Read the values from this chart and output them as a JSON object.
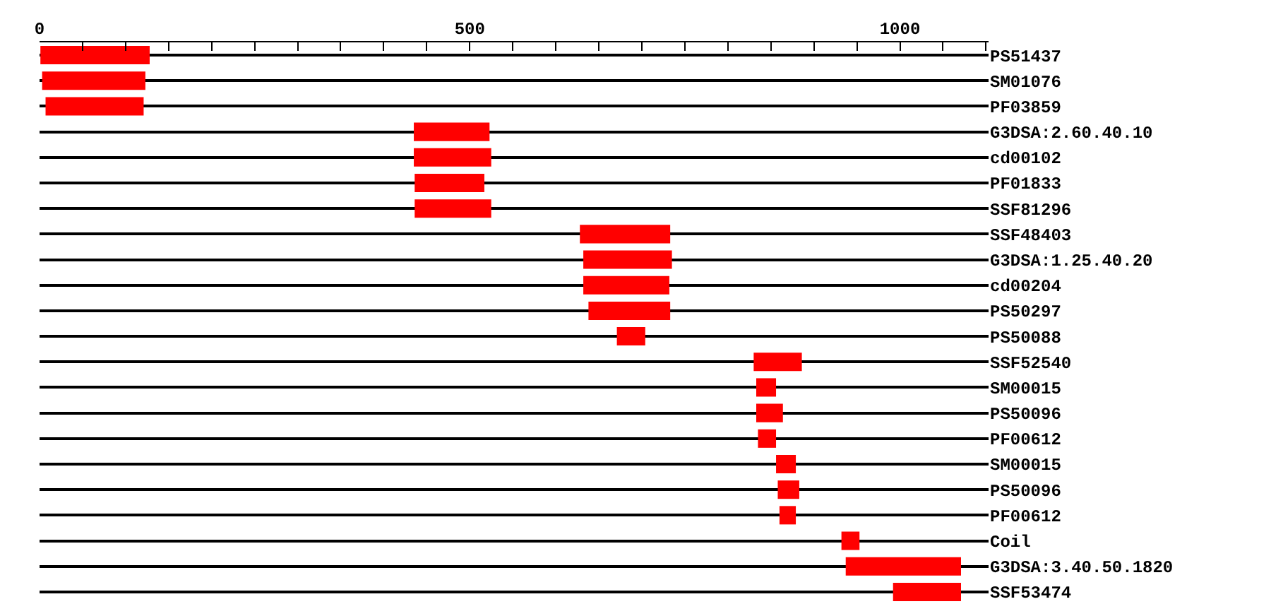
{
  "chart_data": {
    "type": "bar",
    "orientation": "horizontal",
    "categories": [
      "PS51437",
      "SM01076",
      "PF03859",
      "G3DSA:2.60.40.10",
      "cd00102",
      "PF01833",
      "SSF81296",
      "SSF48403",
      "G3DSA:1.25.40.20",
      "cd00204",
      "PS50297",
      "PS50088",
      "SSF52540",
      "SM00015",
      "PS50096",
      "PF00612",
      "SM00015",
      "PS50096",
      "PF00612",
      "Coil",
      "G3DSA:3.40.50.1820",
      "SSF53474"
    ],
    "base": [
      1,
      3,
      7,
      435,
      435,
      436,
      436,
      628,
      632,
      632,
      638,
      671,
      830,
      833,
      833,
      835,
      856,
      858,
      860,
      932,
      937,
      992
    ],
    "values": [
      127,
      120,
      114,
      88,
      90,
      81,
      89,
      105,
      103,
      100,
      95,
      33,
      56,
      23,
      31,
      21,
      23,
      25,
      19,
      21,
      134,
      79
    ],
    "color": "#ff0000",
    "xlim": [
      0,
      1103
    ],
    "xticks": [
      0,
      {
        "value": 50,
        "label": null
      },
      {
        "value": 100,
        "label": null
      },
      {
        "value": 150,
        "label": null
      },
      {
        "value": 200,
        "label": null
      },
      {
        "value": 250,
        "label": null
      },
      {
        "value": 300,
        "label": null
      },
      {
        "value": 350,
        "label": null
      },
      {
        "value": 400,
        "label": null
      },
      {
        "value": 450,
        "label": null
      },
      500,
      {
        "value": 550,
        "label": null
      },
      {
        "value": 600,
        "label": null
      },
      {
        "value": 650,
        "label": null
      },
      {
        "value": 700,
        "label": null
      },
      {
        "value": 750,
        "label": null
      },
      {
        "value": 800,
        "label": null
      },
      {
        "value": 850,
        "label": null
      },
      {
        "value": 900,
        "label": null
      },
      {
        "value": 950,
        "label": null
      },
      1000,
      {
        "value": 1050,
        "label": null
      },
      {
        "value": 1100,
        "label": null
      }
    ],
    "grid": "y",
    "legend": false
  }
}
